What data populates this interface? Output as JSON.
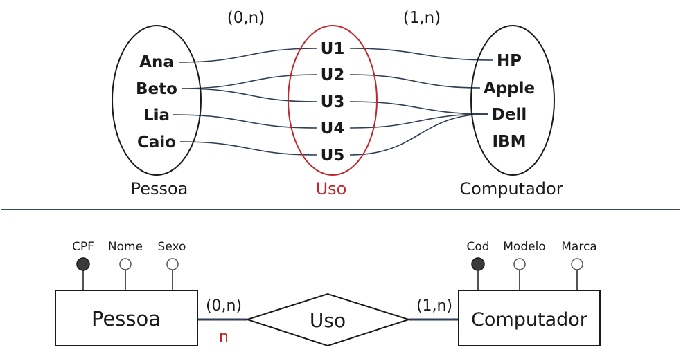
{
  "colors": {
    "ink": "#1a1a1a",
    "red": "#c0282d",
    "link": "#2f3e52",
    "separator": "#3a4a5e"
  },
  "top": {
    "cardinality_left": "(0,n)",
    "cardinality_right": "(1,n)",
    "sets": {
      "pessoa": {
        "label": "Pessoa",
        "items": [
          "Ana",
          "Beto",
          "Lia",
          "Caio"
        ]
      },
      "uso": {
        "label": "Uso",
        "items": [
          "U1",
          "U2",
          "U3",
          "U4",
          "U5"
        ]
      },
      "computador": {
        "label": "Computador",
        "items": [
          "HP",
          "Apple",
          "Dell",
          "IBM"
        ]
      }
    },
    "links_pessoa_uso": [
      [
        "Ana",
        "U1"
      ],
      [
        "Beto",
        "U2"
      ],
      [
        "Beto",
        "U3"
      ],
      [
        "Lia",
        "U4"
      ],
      [
        "Caio",
        "U5"
      ]
    ],
    "links_uso_computador": [
      [
        "U1",
        "HP"
      ],
      [
        "U2",
        "Apple"
      ],
      [
        "U3",
        "Dell"
      ],
      [
        "U4",
        "Dell"
      ],
      [
        "U5",
        "Dell"
      ]
    ]
  },
  "bottom": {
    "pessoa": {
      "label": "Pessoa",
      "attributes": [
        {
          "name": "CPF",
          "key": true
        },
        {
          "name": "Nome",
          "key": false
        },
        {
          "name": "Sexo",
          "key": false
        }
      ]
    },
    "computador": {
      "label": "Computador",
      "attributes": [
        {
          "name": "Cod",
          "key": true
        },
        {
          "name": "Modelo",
          "key": false
        },
        {
          "name": "Marca",
          "key": false
        }
      ]
    },
    "relationship": {
      "label": "Uso"
    },
    "cardinality_left": "(0,n)",
    "cardinality_left_note": "n",
    "cardinality_right": "(1,n)"
  }
}
